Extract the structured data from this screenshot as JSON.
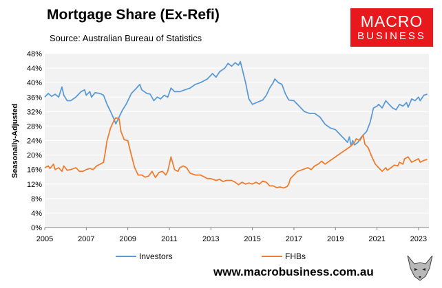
{
  "brand": {
    "logo_line1": "MACRO",
    "logo_line2": "BUSINESS",
    "website": "www.macrobusiness.com.au"
  },
  "chart_data": {
    "type": "line",
    "title": "Mortgage Share (Ex-Refi)",
    "subtitle": "Source: Australian Bureau of Statistics",
    "xlabel": "",
    "ylabel": "Seasonally-Adjusted",
    "xlim": [
      2005.0,
      2023.5
    ],
    "ylim": [
      0,
      48
    ],
    "y_ticks": [
      0,
      4,
      8,
      12,
      16,
      20,
      24,
      28,
      32,
      36,
      40,
      44,
      48
    ],
    "y_tick_labels": [
      "0%",
      "4%",
      "8%",
      "12%",
      "16%",
      "20%",
      "24%",
      "28%",
      "32%",
      "36%",
      "40%",
      "44%",
      "48%"
    ],
    "x_ticks": [
      2005,
      2007,
      2009,
      2011,
      2013,
      2015,
      2017,
      2019,
      2021,
      2023
    ],
    "x_tick_labels": [
      "2005",
      "2007",
      "2009",
      "2011",
      "2013",
      "2015",
      "2017",
      "2019",
      "2021",
      "2023"
    ],
    "grid": true,
    "legend_position": "bottom",
    "series": [
      {
        "name": "Investors",
        "color": "#5b9bd5",
        "points": [
          [
            2005.0,
            36.0
          ],
          [
            2005.17,
            37.0
          ],
          [
            2005.33,
            36.2
          ],
          [
            2005.5,
            36.8
          ],
          [
            2005.67,
            36.0
          ],
          [
            2005.83,
            38.8
          ],
          [
            2005.92,
            36.5
          ],
          [
            2006.08,
            35.0
          ],
          [
            2006.25,
            35.0
          ],
          [
            2006.5,
            36.0
          ],
          [
            2006.75,
            37.5
          ],
          [
            2006.92,
            38.0
          ],
          [
            2007.0,
            36.5
          ],
          [
            2007.17,
            37.5
          ],
          [
            2007.25,
            36.0
          ],
          [
            2007.42,
            37.2
          ],
          [
            2007.67,
            37.0
          ],
          [
            2007.83,
            36.5
          ],
          [
            2008.0,
            34.0
          ],
          [
            2008.17,
            32.0
          ],
          [
            2008.33,
            30.0
          ],
          [
            2008.42,
            28.6
          ],
          [
            2008.58,
            30.5
          ],
          [
            2008.75,
            32.5
          ],
          [
            2008.92,
            34.0
          ],
          [
            2009.17,
            37.0
          ],
          [
            2009.42,
            38.5
          ],
          [
            2009.5,
            39.0
          ],
          [
            2009.58,
            39.5
          ],
          [
            2009.67,
            38.0
          ],
          [
            2009.92,
            37.0
          ],
          [
            2010.08,
            36.8
          ],
          [
            2010.25,
            35.0
          ],
          [
            2010.42,
            36.0
          ],
          [
            2010.58,
            35.5
          ],
          [
            2010.75,
            36.5
          ],
          [
            2010.92,
            36.0
          ],
          [
            2011.08,
            38.5
          ],
          [
            2011.25,
            37.5
          ],
          [
            2011.5,
            37.5
          ],
          [
            2011.75,
            38.0
          ],
          [
            2012.0,
            38.5
          ],
          [
            2012.25,
            39.5
          ],
          [
            2012.5,
            40.0
          ],
          [
            2012.83,
            41.0
          ],
          [
            2013.08,
            42.5
          ],
          [
            2013.25,
            41.5
          ],
          [
            2013.42,
            43.0
          ],
          [
            2013.67,
            44.0
          ],
          [
            2013.83,
            45.3
          ],
          [
            2014.0,
            44.5
          ],
          [
            2014.17,
            45.5
          ],
          [
            2014.33,
            44.8
          ],
          [
            2014.42,
            45.8
          ],
          [
            2014.5,
            44.0
          ],
          [
            2014.67,
            40.0
          ],
          [
            2014.83,
            35.5
          ],
          [
            2015.0,
            34.0
          ],
          [
            2015.25,
            34.6
          ],
          [
            2015.5,
            35.2
          ],
          [
            2015.67,
            36.5
          ],
          [
            2015.83,
            38.5
          ],
          [
            2016.0,
            40.0
          ],
          [
            2016.08,
            41.0
          ],
          [
            2016.25,
            40.0
          ],
          [
            2016.42,
            39.5
          ],
          [
            2016.58,
            37.0
          ],
          [
            2016.75,
            35.2
          ],
          [
            2017.0,
            35.0
          ],
          [
            2017.25,
            33.5
          ],
          [
            2017.5,
            32.0
          ],
          [
            2017.75,
            31.5
          ],
          [
            2018.0,
            31.5
          ],
          [
            2018.25,
            30.5
          ],
          [
            2018.5,
            28.5
          ],
          [
            2018.75,
            27.5
          ],
          [
            2019.0,
            27.0
          ],
          [
            2019.25,
            25.5
          ],
          [
            2019.42,
            24.5
          ],
          [
            2019.58,
            23.5
          ],
          [
            2019.67,
            25.0
          ],
          [
            2019.75,
            22.5
          ],
          [
            2019.83,
            24.0
          ],
          [
            2019.92,
            22.8
          ],
          [
            2020.08,
            23.5
          ],
          [
            2020.25,
            25.0
          ],
          [
            2020.5,
            26.5
          ],
          [
            2020.67,
            29.0
          ],
          [
            2020.83,
            33.0
          ],
          [
            2021.0,
            33.5
          ],
          [
            2021.08,
            34.0
          ],
          [
            2021.25,
            33.0
          ],
          [
            2021.42,
            35.0
          ],
          [
            2021.58,
            34.0
          ],
          [
            2021.75,
            33.0
          ],
          [
            2021.92,
            32.5
          ],
          [
            2022.08,
            34.0
          ],
          [
            2022.25,
            33.5
          ],
          [
            2022.42,
            34.5
          ],
          [
            2022.5,
            33.2
          ],
          [
            2022.67,
            35.5
          ],
          [
            2022.83,
            35.0
          ],
          [
            2023.0,
            36.0
          ],
          [
            2023.08,
            35.0
          ],
          [
            2023.25,
            36.5
          ],
          [
            2023.42,
            36.8
          ]
        ]
      },
      {
        "name": "FHBs",
        "color": "#ed7d31",
        "points": [
          [
            2005.0,
            16.5
          ],
          [
            2005.17,
            17.0
          ],
          [
            2005.25,
            16.3
          ],
          [
            2005.42,
            17.5
          ],
          [
            2005.5,
            16.0
          ],
          [
            2005.67,
            16.5
          ],
          [
            2005.83,
            15.5
          ],
          [
            2005.92,
            17.0
          ],
          [
            2006.08,
            15.8
          ],
          [
            2006.25,
            16.0
          ],
          [
            2006.5,
            16.5
          ],
          [
            2006.67,
            15.5
          ],
          [
            2006.83,
            15.5
          ],
          [
            2007.0,
            16.0
          ],
          [
            2007.17,
            16.3
          ],
          [
            2007.33,
            16.0
          ],
          [
            2007.5,
            17.0
          ],
          [
            2007.67,
            17.5
          ],
          [
            2007.83,
            18.0
          ],
          [
            2007.92,
            21.0
          ],
          [
            2008.0,
            24.0
          ],
          [
            2008.17,
            27.5
          ],
          [
            2008.33,
            29.5
          ],
          [
            2008.42,
            30.3
          ],
          [
            2008.58,
            30.0
          ],
          [
            2008.67,
            26.5
          ],
          [
            2008.83,
            24.2
          ],
          [
            2009.0,
            24.0
          ],
          [
            2009.17,
            20.0
          ],
          [
            2009.33,
            16.5
          ],
          [
            2009.5,
            14.5
          ],
          [
            2009.67,
            14.5
          ],
          [
            2009.83,
            13.9
          ],
          [
            2010.0,
            14.2
          ],
          [
            2010.17,
            15.5
          ],
          [
            2010.33,
            13.8
          ],
          [
            2010.5,
            15.2
          ],
          [
            2010.67,
            15.5
          ],
          [
            2010.83,
            14.5
          ],
          [
            2010.92,
            15.5
          ],
          [
            2011.08,
            19.5
          ],
          [
            2011.25,
            16.0
          ],
          [
            2011.42,
            15.5
          ],
          [
            2011.5,
            16.5
          ],
          [
            2011.67,
            17.0
          ],
          [
            2011.83,
            16.5
          ],
          [
            2012.0,
            15.0
          ],
          [
            2012.25,
            14.5
          ],
          [
            2012.5,
            14.5
          ],
          [
            2012.67,
            14.0
          ],
          [
            2012.83,
            13.5
          ],
          [
            2013.0,
            13.5
          ],
          [
            2013.25,
            13.0
          ],
          [
            2013.42,
            13.3
          ],
          [
            2013.58,
            12.7
          ],
          [
            2013.75,
            13.0
          ],
          [
            2014.0,
            13.0
          ],
          [
            2014.17,
            12.5
          ],
          [
            2014.33,
            11.8
          ],
          [
            2014.5,
            12.5
          ],
          [
            2014.67,
            12.0
          ],
          [
            2014.83,
            12.3
          ],
          [
            2015.0,
            12.0
          ],
          [
            2015.17,
            12.5
          ],
          [
            2015.33,
            12.0
          ],
          [
            2015.5,
            12.8
          ],
          [
            2015.67,
            12.5
          ],
          [
            2015.83,
            11.5
          ],
          [
            2016.0,
            11.5
          ],
          [
            2016.17,
            11.0
          ],
          [
            2016.33,
            11.2
          ],
          [
            2016.5,
            10.9
          ],
          [
            2016.67,
            11.3
          ],
          [
            2016.75,
            12.0
          ],
          [
            2016.83,
            13.5
          ],
          [
            2017.0,
            14.5
          ],
          [
            2017.17,
            15.5
          ],
          [
            2017.42,
            16.0
          ],
          [
            2017.67,
            16.5
          ],
          [
            2017.83,
            16.0
          ],
          [
            2018.0,
            17.0
          ],
          [
            2018.17,
            17.5
          ],
          [
            2018.33,
            18.3
          ],
          [
            2018.5,
            17.5
          ],
          [
            2018.75,
            18.5
          ],
          [
            2019.0,
            19.5
          ],
          [
            2019.25,
            20.5
          ],
          [
            2019.5,
            21.5
          ],
          [
            2019.75,
            22.5
          ],
          [
            2019.92,
            23.5
          ],
          [
            2020.0,
            24.5
          ],
          [
            2020.17,
            24.0
          ],
          [
            2020.33,
            25.5
          ],
          [
            2020.42,
            23.0
          ],
          [
            2020.58,
            22.0
          ],
          [
            2020.75,
            19.5
          ],
          [
            2020.92,
            17.5
          ],
          [
            2021.08,
            16.5
          ],
          [
            2021.25,
            15.5
          ],
          [
            2021.42,
            16.5
          ],
          [
            2021.5,
            15.8
          ],
          [
            2021.67,
            16.5
          ],
          [
            2021.83,
            17.2
          ],
          [
            2022.0,
            17.0
          ],
          [
            2022.08,
            18.0
          ],
          [
            2022.25,
            17.5
          ],
          [
            2022.33,
            19.0
          ],
          [
            2022.5,
            19.5
          ],
          [
            2022.67,
            18.0
          ],
          [
            2022.83,
            18.5
          ],
          [
            2023.0,
            19.0
          ],
          [
            2023.08,
            18.0
          ],
          [
            2023.25,
            18.5
          ],
          [
            2023.42,
            18.8
          ]
        ]
      }
    ]
  }
}
